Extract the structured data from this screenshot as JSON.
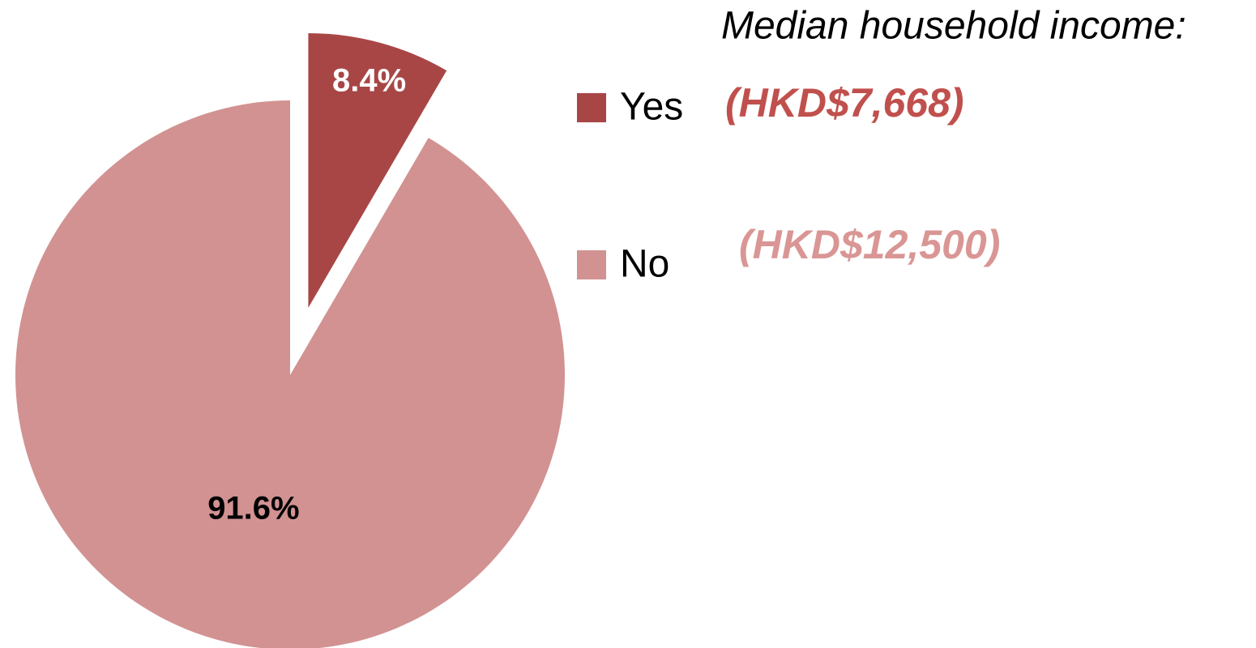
{
  "chart_data": {
    "type": "pie",
    "categories": [
      "Yes",
      "No"
    ],
    "values": [
      8.4,
      91.6
    ],
    "value_labels": [
      "8.4%",
      "91.6%"
    ],
    "colors": [
      "#a84646",
      "#d29292"
    ],
    "annotations": [
      "Median household income:",
      "(HKD$7,668)",
      "(HKD$12,500)"
    ]
  }
}
